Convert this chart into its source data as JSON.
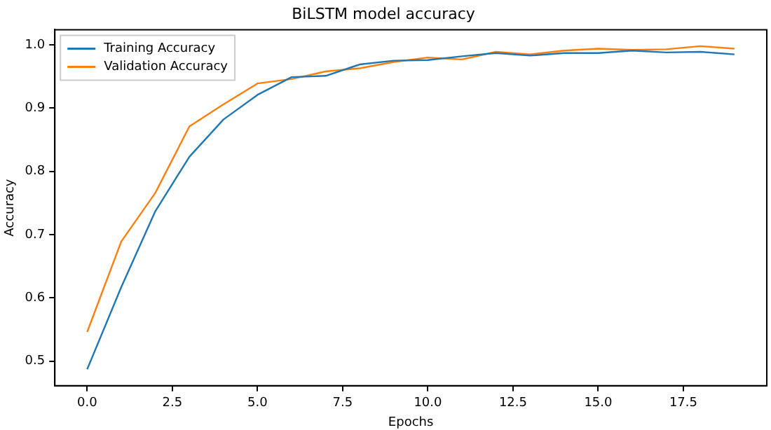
{
  "chart_data": {
    "type": "line",
    "title": "BiLSTM model accuracy",
    "xlabel": "Epochs",
    "ylabel": "Accuracy",
    "x": [
      0,
      1,
      2,
      3,
      4,
      5,
      6,
      7,
      8,
      9,
      10,
      11,
      12,
      13,
      14,
      15,
      16,
      17,
      18,
      19
    ],
    "series": [
      {
        "name": "Training Accuracy",
        "color": "#1f77b4",
        "values": [
          0.487,
          0.617,
          0.737,
          0.823,
          0.882,
          0.921,
          0.949,
          0.951,
          0.969,
          0.975,
          0.976,
          0.982,
          0.987,
          0.983,
          0.987,
          0.987,
          0.991,
          0.988,
          0.989,
          0.985
        ]
      },
      {
        "name": "Validation Accuracy",
        "color": "#ff7f0e",
        "values": [
          0.546,
          0.689,
          0.766,
          0.871,
          0.906,
          0.939,
          0.946,
          0.958,
          0.963,
          0.973,
          0.98,
          0.977,
          0.989,
          0.985,
          0.991,
          0.994,
          0.992,
          0.993,
          0.998,
          0.994
        ]
      }
    ],
    "xlim": [
      -0.95,
      19.95
    ],
    "xticks": [
      {
        "value": 0,
        "label": "0.0"
      },
      {
        "value": 2.5,
        "label": "2.5"
      },
      {
        "value": 5,
        "label": "5.0"
      },
      {
        "value": 7.5,
        "label": "7.5"
      },
      {
        "value": 10,
        "label": "10.0"
      },
      {
        "value": 12.5,
        "label": "12.5"
      },
      {
        "value": 15,
        "label": "15.0"
      },
      {
        "value": 17.5,
        "label": "17.5"
      }
    ],
    "ylim": [
      0.461,
      1.024
    ],
    "yticks": [
      0.5,
      0.6,
      0.7,
      0.8,
      0.9,
      {
        "value": 1,
        "label": "1.0"
      }
    ],
    "legend": "top left",
    "grid": false,
    "marker": "none",
    "line_style": "solid"
  }
}
